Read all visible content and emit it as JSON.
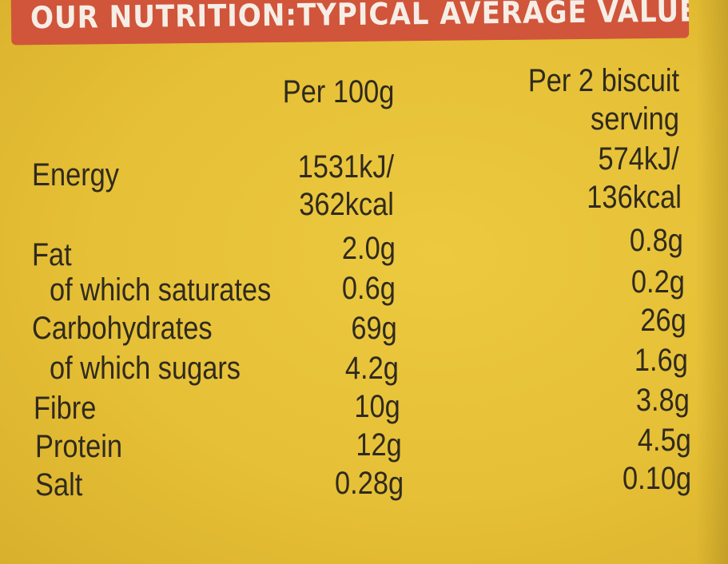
{
  "header": {
    "title": "OUR NUTRITION:TYPICAL AVERAGE VALUES"
  },
  "columns": {
    "per_100g": "Per 100g",
    "per_serving_line1": "Per 2 biscuit",
    "per_serving_line2": "serving"
  },
  "rows": [
    {
      "label": "Energy",
      "per_100g_line1": "1531kJ/",
      "per_100g_line2": "362kcal",
      "per_serving_line1": "574kJ/",
      "per_serving_line2": "136kcal"
    },
    {
      "label": "Fat",
      "per_100g": "2.0g",
      "per_serving": "0.8g"
    },
    {
      "label": "of which saturates",
      "per_100g": "0.6g",
      "per_serving": "0.2g"
    },
    {
      "label": "Carbohydrates",
      "per_100g": "69g",
      "per_serving": "26g"
    },
    {
      "label": "of which sugars",
      "per_100g": "4.2g",
      "per_serving": "1.6g"
    },
    {
      "label": "Fibre",
      "per_100g": "10g",
      "per_serving": "3.8g"
    },
    {
      "label": "Protein",
      "per_100g": "12g",
      "per_serving": "4.5g"
    },
    {
      "label": "Salt",
      "per_100g": "0.28g",
      "per_serving": "0.10g"
    }
  ]
}
